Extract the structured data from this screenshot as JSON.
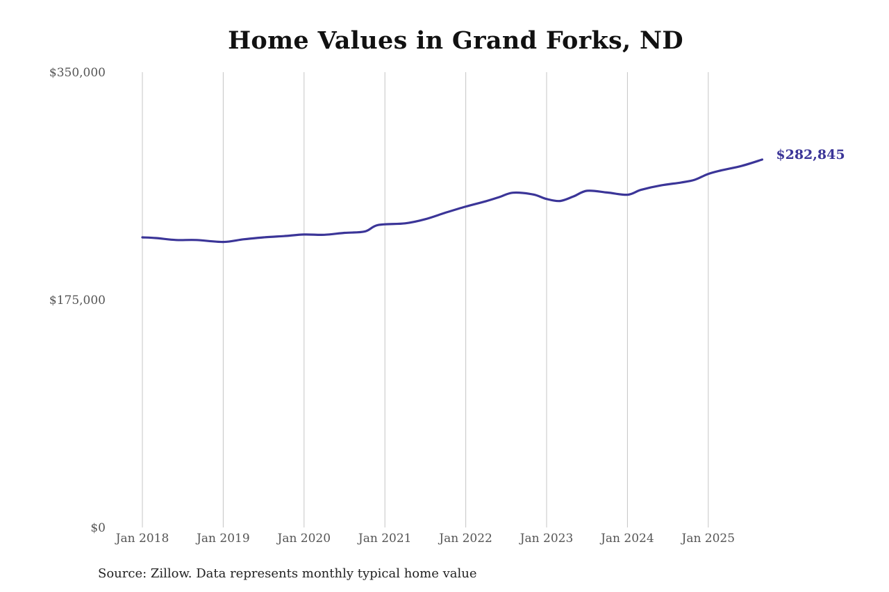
{
  "chart_data": {
    "type": "line",
    "title": "Home Values in Grand Forks, ND",
    "xlabel": "",
    "ylabel": "",
    "ylim": [
      0,
      350000
    ],
    "y_ticks": [
      "$0",
      "$175,000",
      "$350,000"
    ],
    "y_tick_values": [
      0,
      175000,
      350000
    ],
    "x_ticks": [
      "Jan 2018",
      "Jan 2019",
      "Jan 2020",
      "Jan 2021",
      "Jan 2022",
      "Jan 2023",
      "Jan 2024",
      "Jan 2025"
    ],
    "grid": {
      "vertical": true,
      "horizontal": false
    },
    "line_color": "#3b3598",
    "series": [
      {
        "name": "Typical home value",
        "x": [
          "2018-01",
          "2018-03",
          "2018-06",
          "2018-09",
          "2019-01",
          "2019-04",
          "2019-07",
          "2019-10",
          "2020-01",
          "2020-04",
          "2020-07",
          "2020-10",
          "2020-12",
          "2021-04",
          "2021-07",
          "2021-10",
          "2022-01",
          "2022-04",
          "2022-06",
          "2022-08",
          "2022-11",
          "2023-01",
          "2023-03",
          "2023-05",
          "2023-07",
          "2023-10",
          "2024-01",
          "2024-03",
          "2024-06",
          "2024-09",
          "2024-11",
          "2025-01",
          "2025-03",
          "2025-06",
          "2025-09"
        ],
        "values": [
          223000,
          222500,
          221000,
          221000,
          219500,
          221500,
          223000,
          224000,
          225200,
          225000,
          226500,
          227500,
          232500,
          233800,
          237000,
          242000,
          246700,
          250800,
          254000,
          257300,
          256000,
          252500,
          251000,
          254500,
          258800,
          257500,
          255800,
          259500,
          263000,
          265200,
          267300,
          271800,
          274600,
          278000,
          282845
        ]
      }
    ],
    "annotations": [
      {
        "text": "$282,845",
        "x": "2025-09",
        "value": 282845
      }
    ],
    "source": "Source: Zillow. Data represents monthly typical home value"
  }
}
